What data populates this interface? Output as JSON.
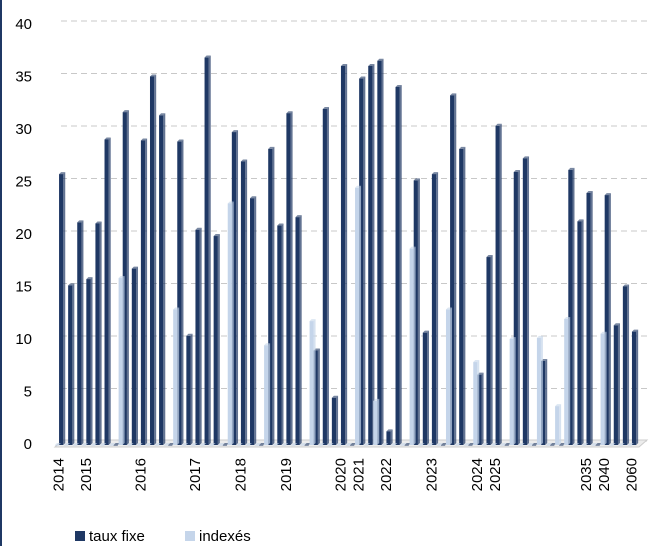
{
  "chart_data": {
    "type": "bar",
    "categories": [
      "2014",
      null,
      null,
      "2015",
      null,
      null,
      null,
      null,
      null,
      "2016",
      null,
      null,
      null,
      null,
      null,
      "2017",
      null,
      null,
      null,
      null,
      "2018",
      null,
      null,
      null,
      null,
      "2019",
      null,
      null,
      null,
      null,
      null,
      "2020",
      null,
      "2021",
      null,
      null,
      "2022",
      null,
      null,
      null,
      null,
      "2023",
      null,
      null,
      null,
      null,
      "2024",
      null,
      "2025",
      null,
      null,
      null,
      null,
      null,
      null,
      null,
      null,
      null,
      "2035",
      null,
      "2040",
      null,
      null,
      "2060"
    ],
    "series": [
      {
        "name": "taux fixe",
        "color": "#1f3864",
        "values": [
          25.8,
          15.2,
          21.2,
          15.8,
          21.1,
          29.1,
          0,
          31.7,
          16.8,
          29.0,
          35.1,
          31.4,
          0,
          28.9,
          10.4,
          20.5,
          36.9,
          19.9,
          0,
          29.8,
          27.0,
          23.5,
          0,
          28.2,
          20.9,
          31.6,
          21.7,
          0,
          9.0,
          32.0,
          4.5,
          36.1,
          0,
          34.9,
          36.1,
          36.6,
          1.3,
          34.1,
          0,
          25.2,
          10.7,
          25.8,
          0,
          33.3,
          28.2,
          0,
          6.7,
          17.9,
          30.4,
          0,
          26.0,
          27.3,
          0,
          8.0,
          0,
          0,
          26.2,
          21.3,
          24.0,
          0,
          23.8,
          11.4,
          15.1,
          10.8
        ]
      },
      {
        "name": "indexés",
        "color": "#c5d5ea",
        "values": [
          0,
          0,
          0,
          0,
          0,
          0,
          0,
          15.9,
          0,
          0,
          0,
          0,
          0,
          12.9,
          0,
          0,
          0,
          0,
          0,
          23.0,
          0,
          0,
          0,
          9.5,
          0,
          0,
          0,
          0,
          11.8,
          0,
          0,
          0,
          0,
          24.5,
          0,
          4.2,
          0,
          0,
          0,
          18.7,
          0,
          0,
          0,
          12.9,
          0,
          0,
          7.9,
          0,
          0,
          0,
          10.1,
          0,
          0,
          10.2,
          0,
          3.7,
          12.0,
          0,
          0,
          0,
          10.6,
          0,
          0,
          0
        ]
      }
    ],
    "ylim": [
      0,
      40
    ],
    "yticks": [
      0,
      5,
      10,
      15,
      20,
      25,
      30,
      35,
      40
    ],
    "grid": true
  }
}
